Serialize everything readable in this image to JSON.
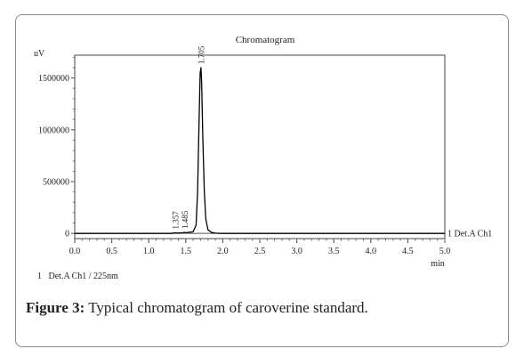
{
  "chart_data": {
    "type": "line",
    "title": "Chromatogram",
    "ylabel": "uV",
    "xlabel": "min",
    "xlim": [
      0.0,
      5.0
    ],
    "ylim": [
      -50000,
      1720000
    ],
    "x_ticks": [
      "0.0",
      "0.5",
      "1.0",
      "1.5",
      "2.0",
      "2.5",
      "3.0",
      "3.5",
      "4.0",
      "4.5",
      "5.0"
    ],
    "y_ticks": [
      "0",
      "500000",
      "1000000",
      "1500000"
    ],
    "series": [
      {
        "name": "1 Det.A Ch1",
        "color": "#000000",
        "x": [
          0.0,
          1.0,
          1.3,
          1.35,
          1.357,
          1.37,
          1.45,
          1.485,
          1.5,
          1.6,
          1.64,
          1.66,
          1.68,
          1.695,
          1.705,
          1.715,
          1.73,
          1.75,
          1.77,
          1.8,
          1.85,
          1.9,
          2.0,
          3.0,
          4.0,
          5.0
        ],
        "y": [
          0,
          0,
          0,
          4000,
          6000,
          3000,
          6000,
          10000,
          7000,
          15000,
          80000,
          400000,
          1100000,
          1550000,
          1600000,
          1450000,
          950000,
          420000,
          140000,
          35000,
          8000,
          2000,
          0,
          0,
          0,
          0
        ]
      }
    ],
    "peak_labels": [
      {
        "label": "1.357",
        "x": 1.357,
        "y": 6000
      },
      {
        "label": "1.485",
        "x": 1.485,
        "y": 10000
      },
      {
        "label": "1.705",
        "x": 1.705,
        "y": 1600000
      }
    ],
    "trace_label": "1 Det.A Ch1",
    "legend_text": "1   Det.A Ch1 / 225nm",
    "grid": false
  },
  "caption": {
    "label": "Figure 3:",
    "text": " Typical chromatogram of caroverine standard."
  }
}
